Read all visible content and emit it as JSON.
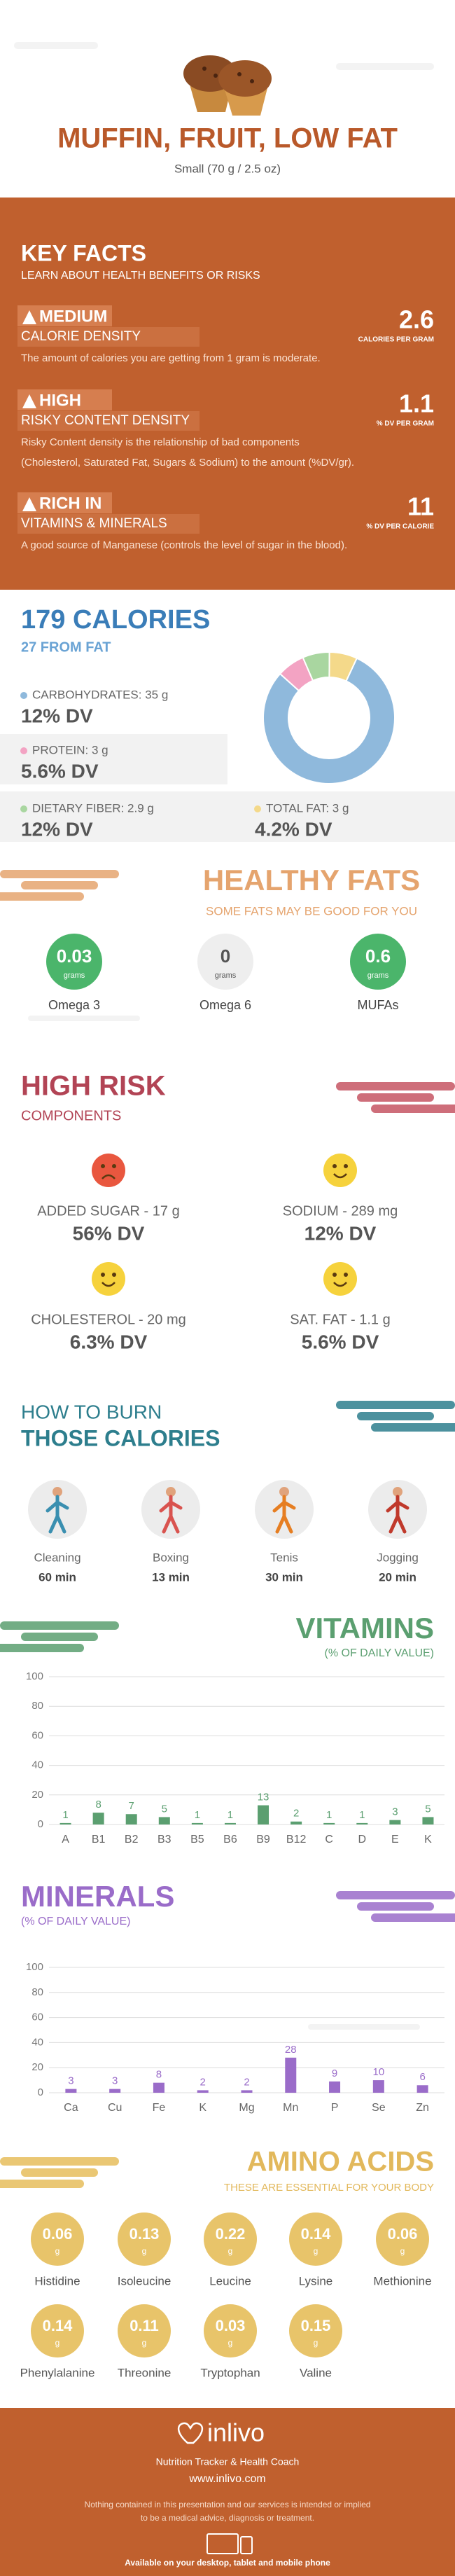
{
  "header": {
    "title": "MUFFIN, FRUIT, LOW FAT",
    "serving": "Small (70 g / 2.5 oz)"
  },
  "key_facts": {
    "title": "KEY FACTS",
    "subtitle": "LEARN ABOUT HEALTH BENEFITS OR RISKS",
    "items": [
      {
        "level": "MEDIUM",
        "name": "CALORIE DENSITY",
        "value": "2.6",
        "unit": "CALORIES PER GRAM",
        "description": [
          "The amount of calories you are getting from 1 gram is moderate."
        ]
      },
      {
        "level": "HIGH",
        "name": "RISKY CONTENT DENSITY",
        "value": "1.1",
        "unit": "% DV PER GRAM",
        "description": [
          "Risky Content density is the relationship of bad components",
          "(Cholesterol, Saturated Fat, Sugars & Sodium) to the amount (%DV/gr)."
        ]
      },
      {
        "level": "RICH IN",
        "name": "VITAMINS & MINERALS",
        "value": "11",
        "unit": "% DV PER CALORIE",
        "description": [
          "A good source of Manganese (controls the level of sugar in the blood)."
        ]
      }
    ]
  },
  "calories": {
    "title": "179 CALORIES",
    "subtitle": "27 FROM FAT",
    "nutrients": [
      {
        "label": "CARBOHYDRATES: 35 g",
        "grams": 35,
        "dv": "12% DV",
        "color": "#8fb9dc"
      },
      {
        "label": "PROTEIN: 3 g",
        "grams": 3,
        "dv": "5.6% DV",
        "color": "#f3a3c3"
      },
      {
        "label": "DIETARY FIBER: 2.9 g",
        "grams": 2.9,
        "dv": "12% DV",
        "color": "#a9d6a0"
      },
      {
        "label": "TOTAL FAT: 3 g",
        "grams": 3,
        "dv": "4.2% DV",
        "color": "#f4d98a"
      }
    ]
  },
  "healthy_fats": {
    "title": "HEALTHY FATS",
    "subtitle": "SOME FATS MAY BE GOOD FOR YOU",
    "items": [
      {
        "value": 0.03,
        "unit": "grams",
        "name": "Omega 3",
        "color": "#4bb56b"
      },
      {
        "value": 0,
        "unit": "grams",
        "name": "Omega 6",
        "color": "#eeeeee"
      },
      {
        "value": 0.6,
        "unit": "grams",
        "name": "MUFAs",
        "color": "#4bb56b"
      }
    ]
  },
  "high_risk": {
    "title": "HIGH RISK",
    "subtitle": "COMPONENTS",
    "items": [
      {
        "name": "ADDED SUGAR - 17 g",
        "dv": "56% DV"
      },
      {
        "name": "SODIUM - 289 mg",
        "dv": "12% DV"
      },
      {
        "name": "CHOLESTEROL - 20 mg",
        "dv": "6.3% DV"
      },
      {
        "name": "SAT. FAT - 1.1 g",
        "dv": "5.6% DV"
      }
    ]
  },
  "burn": {
    "title": [
      "HOW TO BURN",
      "THOSE CALORIES"
    ],
    "items": [
      {
        "name": "Cleaning",
        "time": "60 min"
      },
      {
        "name": "Boxing",
        "time": "13 min"
      },
      {
        "name": "Tenis",
        "time": "30 min"
      },
      {
        "name": "Jogging",
        "time": "20 min"
      }
    ]
  },
  "chart_data": [
    {
      "type": "bar",
      "title": "VITAMINS",
      "subtitle": "(% OF DAILY VALUE)",
      "categories": [
        "A",
        "B1",
        "B2",
        "B3",
        "B5",
        "B6",
        "B9",
        "B12",
        "C",
        "D",
        "E",
        "K"
      ],
      "values": [
        1,
        8,
        7,
        5,
        1,
        1,
        13,
        2,
        1,
        1,
        3,
        5
      ],
      "color": "#5b9f70",
      "ylim": [
        0,
        100
      ],
      "yticks": [
        0,
        20,
        40,
        60,
        80,
        100
      ],
      "grid": true
    },
    {
      "type": "bar",
      "title": "MINERALS",
      "subtitle": "(% OF DAILY VALUE)",
      "categories": [
        "Ca",
        "Cu",
        "Fe",
        "K",
        "Mg",
        "Mn",
        "P",
        "Se",
        "Zn"
      ],
      "values": [
        3,
        3,
        8,
        2,
        2,
        28,
        9,
        10,
        6
      ],
      "color": "#9a6cc9",
      "ylim": [
        0,
        100
      ],
      "yticks": [
        0,
        20,
        40,
        60,
        80,
        100
      ],
      "grid": true
    }
  ],
  "amino_acids": {
    "title": "AMINO ACIDS",
    "subtitle": "THESE ARE ESSENTIAL FOR YOUR BODY",
    "unit": "g",
    "items": [
      {
        "name": "Histidine",
        "value": 0.06
      },
      {
        "name": "Isoleucine",
        "value": 0.13
      },
      {
        "name": "Leucine",
        "value": 0.22
      },
      {
        "name": "Lysine",
        "value": 0.14
      },
      {
        "name": "Methionine",
        "value": 0.06
      },
      {
        "name": "Phenylalanine",
        "value": 0.14
      },
      {
        "name": "Threonine",
        "value": 0.11
      },
      {
        "name": "Tryptophan",
        "value": 0.03
      },
      {
        "name": "Valine",
        "value": 0.15
      }
    ]
  },
  "footer": {
    "brand": "inlivo",
    "tagline": "Nutrition Tracker & Health Coach",
    "url": "www.inlivo.com",
    "disclaimer": [
      "Nothing contained in this presentation and our services is intended or implied",
      "to be a medical advice, diagnosis or treatment."
    ],
    "available": "Available on your desktop, tablet and mobile phone"
  }
}
